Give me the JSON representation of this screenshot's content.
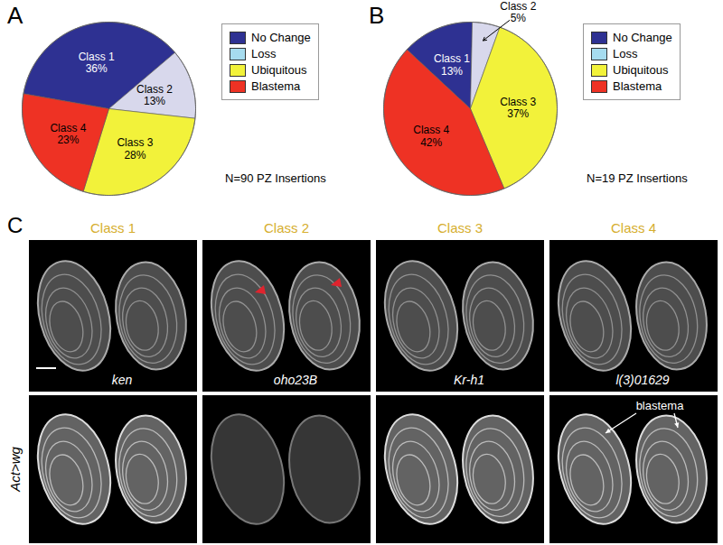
{
  "chart_data": [
    {
      "type": "pie",
      "title": "A",
      "categories": [
        "Class 1",
        "Class 2",
        "Class 3",
        "Class 4"
      ],
      "values": [
        36,
        13,
        28,
        23
      ],
      "value_labels": [
        "36%",
        "13%",
        "28%",
        "23%"
      ],
      "colors": [
        "#2e3192",
        "#d8d8ec",
        "#f2f23a",
        "#ee3224"
      ],
      "data_labels": true,
      "legend": "right",
      "legend_items": [
        {
          "name": "No Change",
          "color": "#2e3192"
        },
        {
          "name": "Loss",
          "color": "#a6dcef"
        },
        {
          "name": "Ubiquitous",
          "color": "#f2f23a"
        },
        {
          "name": "Blastema",
          "color": "#ee3224"
        }
      ],
      "annotation": "N=90 PZ Insertions"
    },
    {
      "type": "pie",
      "title": "B",
      "categories": [
        "Class 1",
        "Class 2",
        "Class 3",
        "Class 4"
      ],
      "values": [
        13,
        5,
        37,
        42
      ],
      "value_labels": [
        "13%",
        "5%",
        "37%",
        "42%"
      ],
      "colors": [
        "#2e3192",
        "#d8d8ec",
        "#f2f23a",
        "#ee3224"
      ],
      "data_labels": true,
      "legend": "right",
      "legend_items": [
        {
          "name": "No Change",
          "color": "#2e3192"
        },
        {
          "name": "Loss",
          "color": "#a6dcef"
        },
        {
          "name": "Ubiquitous",
          "color": "#f2f23a"
        },
        {
          "name": "Blastema",
          "color": "#ee3224"
        }
      ],
      "annotation": "N=19 PZ Insertions"
    }
  ],
  "panel_c": {
    "label": "C",
    "columns": [
      {
        "title": "Class 1",
        "gene": "ken"
      },
      {
        "title": "Class 2",
        "gene": "oho23B"
      },
      {
        "title": "Class 3",
        "gene": "Kr-h1"
      },
      {
        "title": "Class 4",
        "gene": "l(3)01629"
      }
    ],
    "row_label": "Act>wg",
    "annotation": "blastema"
  }
}
